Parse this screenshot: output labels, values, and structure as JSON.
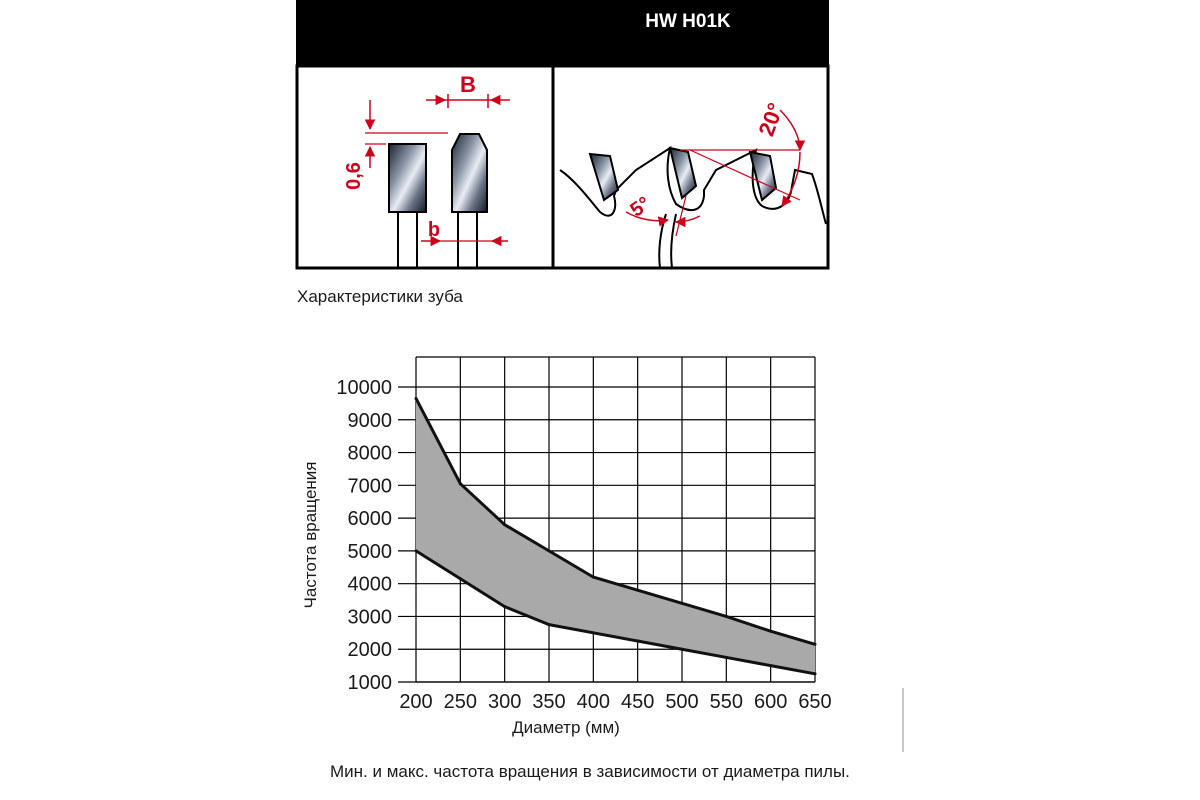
{
  "header": {
    "title": "HW H01K"
  },
  "tooth_diagram": {
    "label_B": "B",
    "label_b": "b",
    "label_06": "0,6",
    "angle_clearance": "5°",
    "angle_rake": "20°"
  },
  "captions": {
    "tooth": "Характеристики зуба",
    "chart": "Мин. и макс. частота вращения в зависимости от диаметра пилы."
  },
  "colors": {
    "band_fill": "#a9a9a9",
    "accent_red": "#d0021b",
    "header_bg": "#000000"
  },
  "chart_data": {
    "type": "area",
    "title": "",
    "xlabel": "Диаметр (мм)",
    "ylabel": "Частота вращения",
    "x": [
      200,
      250,
      300,
      350,
      400,
      450,
      500,
      550,
      600,
      650
    ],
    "xlim": [
      200,
      650
    ],
    "ylim": [
      1000,
      10000
    ],
    "xticks": [
      "200",
      "250",
      "300",
      "350",
      "400",
      "450",
      "500",
      "550",
      "600",
      "650"
    ],
    "yticks": [
      "10000",
      "9000",
      "8000",
      "7000",
      "6000",
      "5000",
      "4000",
      "3000",
      "2000",
      "1000"
    ],
    "grid": true,
    "series": [
      {
        "values": [
          9650,
          7050,
          5800,
          5000,
          4200,
          3800,
          3400,
          3000,
          2550,
          2150
        ]
      },
      {
        "values": [
          5000,
          4150,
          3300,
          2750,
          2500,
          2250,
          2000,
          1750,
          1500,
          1250
        ]
      }
    ]
  }
}
